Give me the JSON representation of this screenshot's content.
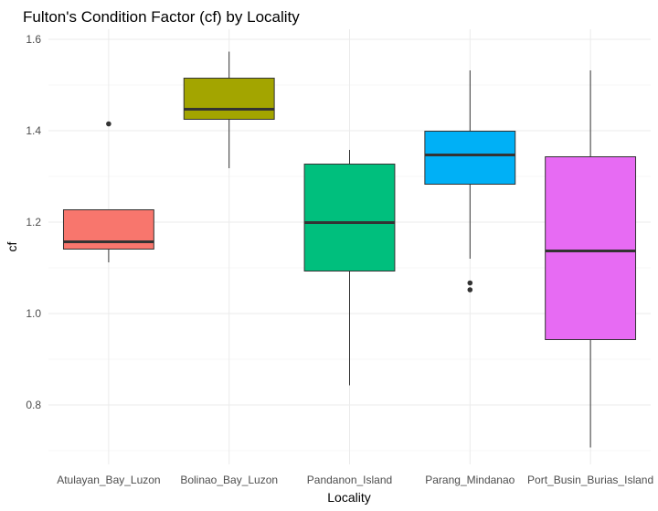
{
  "chart_data": {
    "type": "boxplot",
    "title": "Fulton's Condition Factor (cf) by Locality",
    "xlabel": "Locality",
    "ylabel": "cf",
    "ylim": [
      0.7,
      1.6
    ],
    "yticks": [
      0.8,
      1.0,
      1.2,
      1.4,
      1.6
    ],
    "ytick_labels": [
      "0.8",
      "1.0",
      "1.2",
      "1.4",
      "1.6"
    ],
    "grid": true,
    "legend": "none",
    "categories": [
      "Atulayan_Bay_Luzon",
      "Bolinao_Bay_Luzon",
      "Pandanon_Island",
      "Parang_Mindanao",
      "Port_Busin_Burias_Island"
    ],
    "boxes": [
      {
        "category": "Atulayan_Bay_Luzon",
        "min": 1.112,
        "q1": 1.141,
        "median": 1.157,
        "q3": 1.227,
        "max": 1.227,
        "outliers": [
          1.415
        ],
        "color": "#F8766D"
      },
      {
        "category": "Bolinao_Bay_Luzon",
        "min": 1.318,
        "q1": 1.425,
        "median": 1.447,
        "q3": 1.515,
        "max": 1.573,
        "outliers": [],
        "color": "#A3A500"
      },
      {
        "category": "Pandanon_Island",
        "min": 0.843,
        "q1": 1.093,
        "median": 1.199,
        "q3": 1.327,
        "max": 1.358,
        "outliers": [],
        "color": "#00BF7D"
      },
      {
        "category": "Parang_Mindanao",
        "min": 1.12,
        "q1": 1.283,
        "median": 1.347,
        "q3": 1.399,
        "max": 1.532,
        "outliers": [
          1.067,
          1.052
        ],
        "color": "#00B0F6"
      },
      {
        "category": "Port_Busin_Burias_Island",
        "min": 0.707,
        "q1": 0.943,
        "median": 1.137,
        "q3": 1.343,
        "max": 1.532,
        "outliers": [],
        "color": "#E76BF3"
      }
    ]
  }
}
